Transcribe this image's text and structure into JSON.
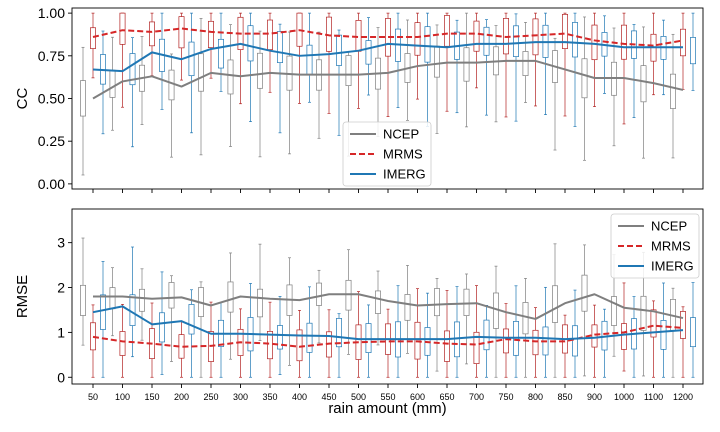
{
  "colors": {
    "NCEP": "#7f7f7f",
    "MRMS": "#d62728",
    "IMERG": "#1f77b4",
    "box_NCEP": "#7f7f7f",
    "box_MRMS": "#b22222",
    "box_IMERG": "#1f77b4"
  },
  "chart_data": [
    {
      "type": "line",
      "ylabel": "CC",
      "xlabel": "",
      "ylim": [
        -0.03,
        1.03
      ],
      "yticks": [
        0.0,
        0.25,
        0.5,
        0.75,
        1.0
      ],
      "ytick_labels": [
        "0.00",
        "0.25",
        "0.50",
        "0.75",
        "1.00"
      ],
      "legend_position": "lower-center",
      "categories": [
        "50",
        "100",
        "150",
        "200",
        "250",
        "300",
        "350",
        "400",
        "450",
        "500",
        "550",
        "600",
        "650",
        "700",
        "750",
        "800",
        "850",
        "900",
        "1000",
        "1100",
        "1200"
      ],
      "series": [
        {
          "name": "NCEP",
          "style": "solid",
          "values": [
            0.5,
            0.6,
            0.63,
            0.57,
            0.65,
            0.63,
            0.65,
            0.64,
            0.64,
            0.64,
            0.65,
            0.69,
            0.71,
            0.71,
            0.72,
            0.72,
            0.67,
            0.62,
            0.62,
            0.59,
            0.55
          ]
        },
        {
          "name": "MRMS",
          "style": "dashed",
          "values": [
            0.86,
            0.9,
            0.89,
            0.91,
            0.89,
            0.88,
            0.88,
            0.9,
            0.87,
            0.86,
            0.86,
            0.86,
            0.88,
            0.88,
            0.86,
            0.87,
            0.88,
            0.84,
            0.82,
            0.81,
            0.84
          ]
        },
        {
          "name": "IMERG",
          "style": "solid",
          "values": [
            0.67,
            0.66,
            0.77,
            0.73,
            0.79,
            0.82,
            0.78,
            0.75,
            0.76,
            0.78,
            0.82,
            0.81,
            0.8,
            0.82,
            0.82,
            0.83,
            0.83,
            0.82,
            0.8,
            0.8,
            0.8
          ]
        }
      ]
    },
    {
      "type": "line",
      "ylabel": "RMSE",
      "xlabel": "rain amount (mm)",
      "ylim": [
        -0.15,
        3.75
      ],
      "yticks": [
        0,
        1,
        2,
        3
      ],
      "ytick_labels": [
        "0",
        "1",
        "2",
        "3"
      ],
      "legend_position": "top-right",
      "categories": [
        "50",
        "100",
        "150",
        "200",
        "250",
        "300",
        "350",
        "400",
        "450",
        "500",
        "550",
        "600",
        "650",
        "700",
        "750",
        "800",
        "850",
        "900",
        "1000",
        "1100",
        "1200"
      ],
      "series": [
        {
          "name": "NCEP",
          "style": "solid",
          "values": [
            1.8,
            1.8,
            1.75,
            1.78,
            1.6,
            1.8,
            1.75,
            1.72,
            1.85,
            1.85,
            1.7,
            1.6,
            1.63,
            1.65,
            1.45,
            1.3,
            1.65,
            1.85,
            1.55,
            1.47,
            1.32
          ]
        },
        {
          "name": "MRMS",
          "style": "dashed",
          "values": [
            0.9,
            0.8,
            0.75,
            0.68,
            0.7,
            0.78,
            0.75,
            0.68,
            0.75,
            0.78,
            0.8,
            0.8,
            0.75,
            0.73,
            0.85,
            0.8,
            0.8,
            0.95,
            1.0,
            1.15,
            1.1
          ]
        },
        {
          "name": "IMERG",
          "style": "solid",
          "values": [
            1.45,
            1.58,
            1.18,
            1.25,
            0.97,
            0.97,
            0.95,
            0.93,
            0.92,
            0.85,
            0.85,
            0.85,
            0.85,
            0.9,
            0.88,
            0.88,
            0.85,
            0.88,
            0.95,
            1.0,
            1.05
          ]
        }
      ]
    }
  ]
}
